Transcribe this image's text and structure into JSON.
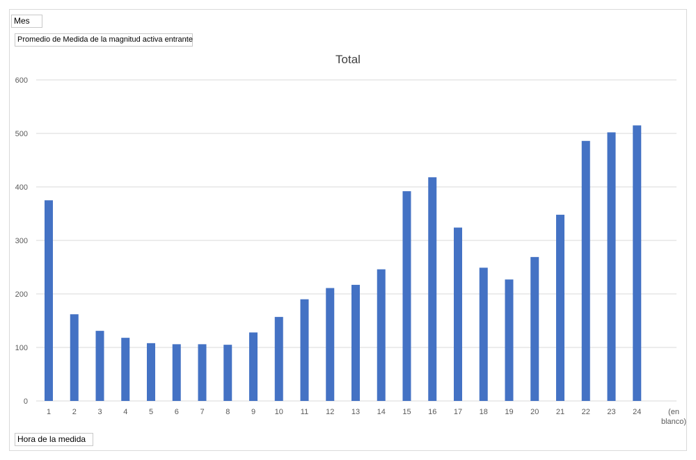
{
  "filters": {
    "column_field": "Mes",
    "value_field": "Promedio de Medida de la magnitud activa entrante",
    "axis_field": "Hora de la medida"
  },
  "chart_data": {
    "type": "bar",
    "title": "Total",
    "xlabel": "",
    "ylabel": "",
    "categories": [
      "1",
      "2",
      "3",
      "4",
      "5",
      "6",
      "7",
      "8",
      "9",
      "10",
      "11",
      "12",
      "13",
      "14",
      "15",
      "16",
      "17",
      "18",
      "19",
      "20",
      "21",
      "22",
      "23",
      "24",
      "(en blanco)"
    ],
    "values": [
      375,
      162,
      131,
      118,
      108,
      106,
      106,
      105,
      128,
      157,
      190,
      211,
      217,
      246,
      392,
      418,
      324,
      249,
      227,
      269,
      348,
      486,
      502,
      515,
      null
    ],
    "ylim": [
      0,
      600
    ],
    "yticks": [
      0,
      100,
      200,
      300,
      400,
      500,
      600
    ],
    "grid": true,
    "legend": "none",
    "bar_color": "#4472C4",
    "grid_color": "#d9d9d9"
  }
}
